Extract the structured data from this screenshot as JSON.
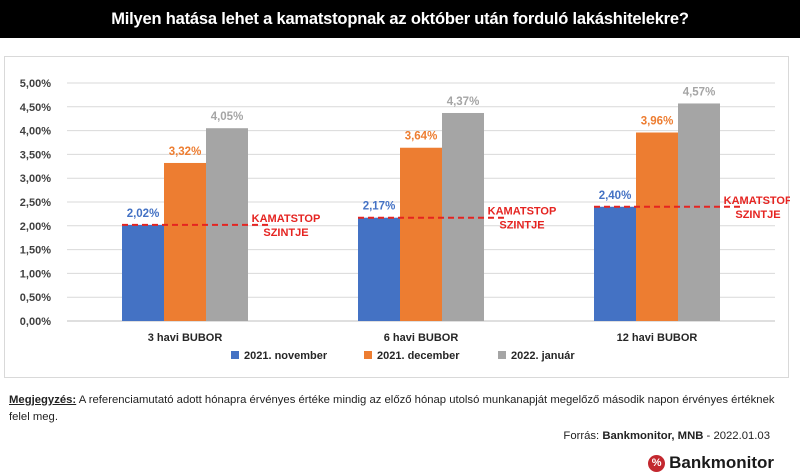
{
  "header": {
    "title": "Milyen hatása lehet a kamatstopnak az október után forduló lakáshitelekre?"
  },
  "chart_data": {
    "type": "bar",
    "categories": [
      "3 havi BUBOR",
      "6 havi BUBOR",
      "12 havi BUBOR"
    ],
    "series": [
      {
        "name": "2021. november",
        "color": "#4472c4",
        "values": [
          2.02,
          2.17,
          2.4
        ],
        "labels": [
          "2,02%",
          "2,17%",
          "2,40%"
        ]
      },
      {
        "name": "2021. december",
        "color": "#ed7d31",
        "values": [
          3.32,
          3.64,
          3.96
        ],
        "labels": [
          "3,32%",
          "3,64%",
          "3,96%"
        ]
      },
      {
        "name": "2022. január",
        "color": "#a5a5a5",
        "values": [
          4.05,
          4.37,
          4.57
        ],
        "labels": [
          "4,05%",
          "4,37%",
          "4,57%"
        ]
      }
    ],
    "y_ticks": [
      0,
      0.5,
      1,
      1.5,
      2,
      2.5,
      3,
      3.5,
      4,
      4.5,
      5
    ],
    "y_tick_labels": [
      "0,00%",
      "0,50%",
      "1,00%",
      "1,50%",
      "2,00%",
      "2,50%",
      "3,00%",
      "3,50%",
      "4,00%",
      "4,50%",
      "5,00%"
    ],
    "ylim": [
      0,
      5
    ],
    "grid": true,
    "legend_position": "bottom",
    "annotations": [
      {
        "label_line1": "KAMATSTOP",
        "label_line2": "SZINTJE",
        "color": "#e52421"
      }
    ]
  },
  "note": {
    "label": "Megjegyzés:",
    "text": " A referenciamutató adott hónapra érvényes értéke mindig az előző hónap utolsó munkanapját megelőző második napon érvényes értéknek felel meg."
  },
  "source": {
    "prefix": "Forrás: ",
    "bold": "Bankmonitor, MNB",
    "suffix": " - 2022.01.03"
  },
  "brand": {
    "name": "Bankmonitor",
    "icon_glyph": "%"
  }
}
